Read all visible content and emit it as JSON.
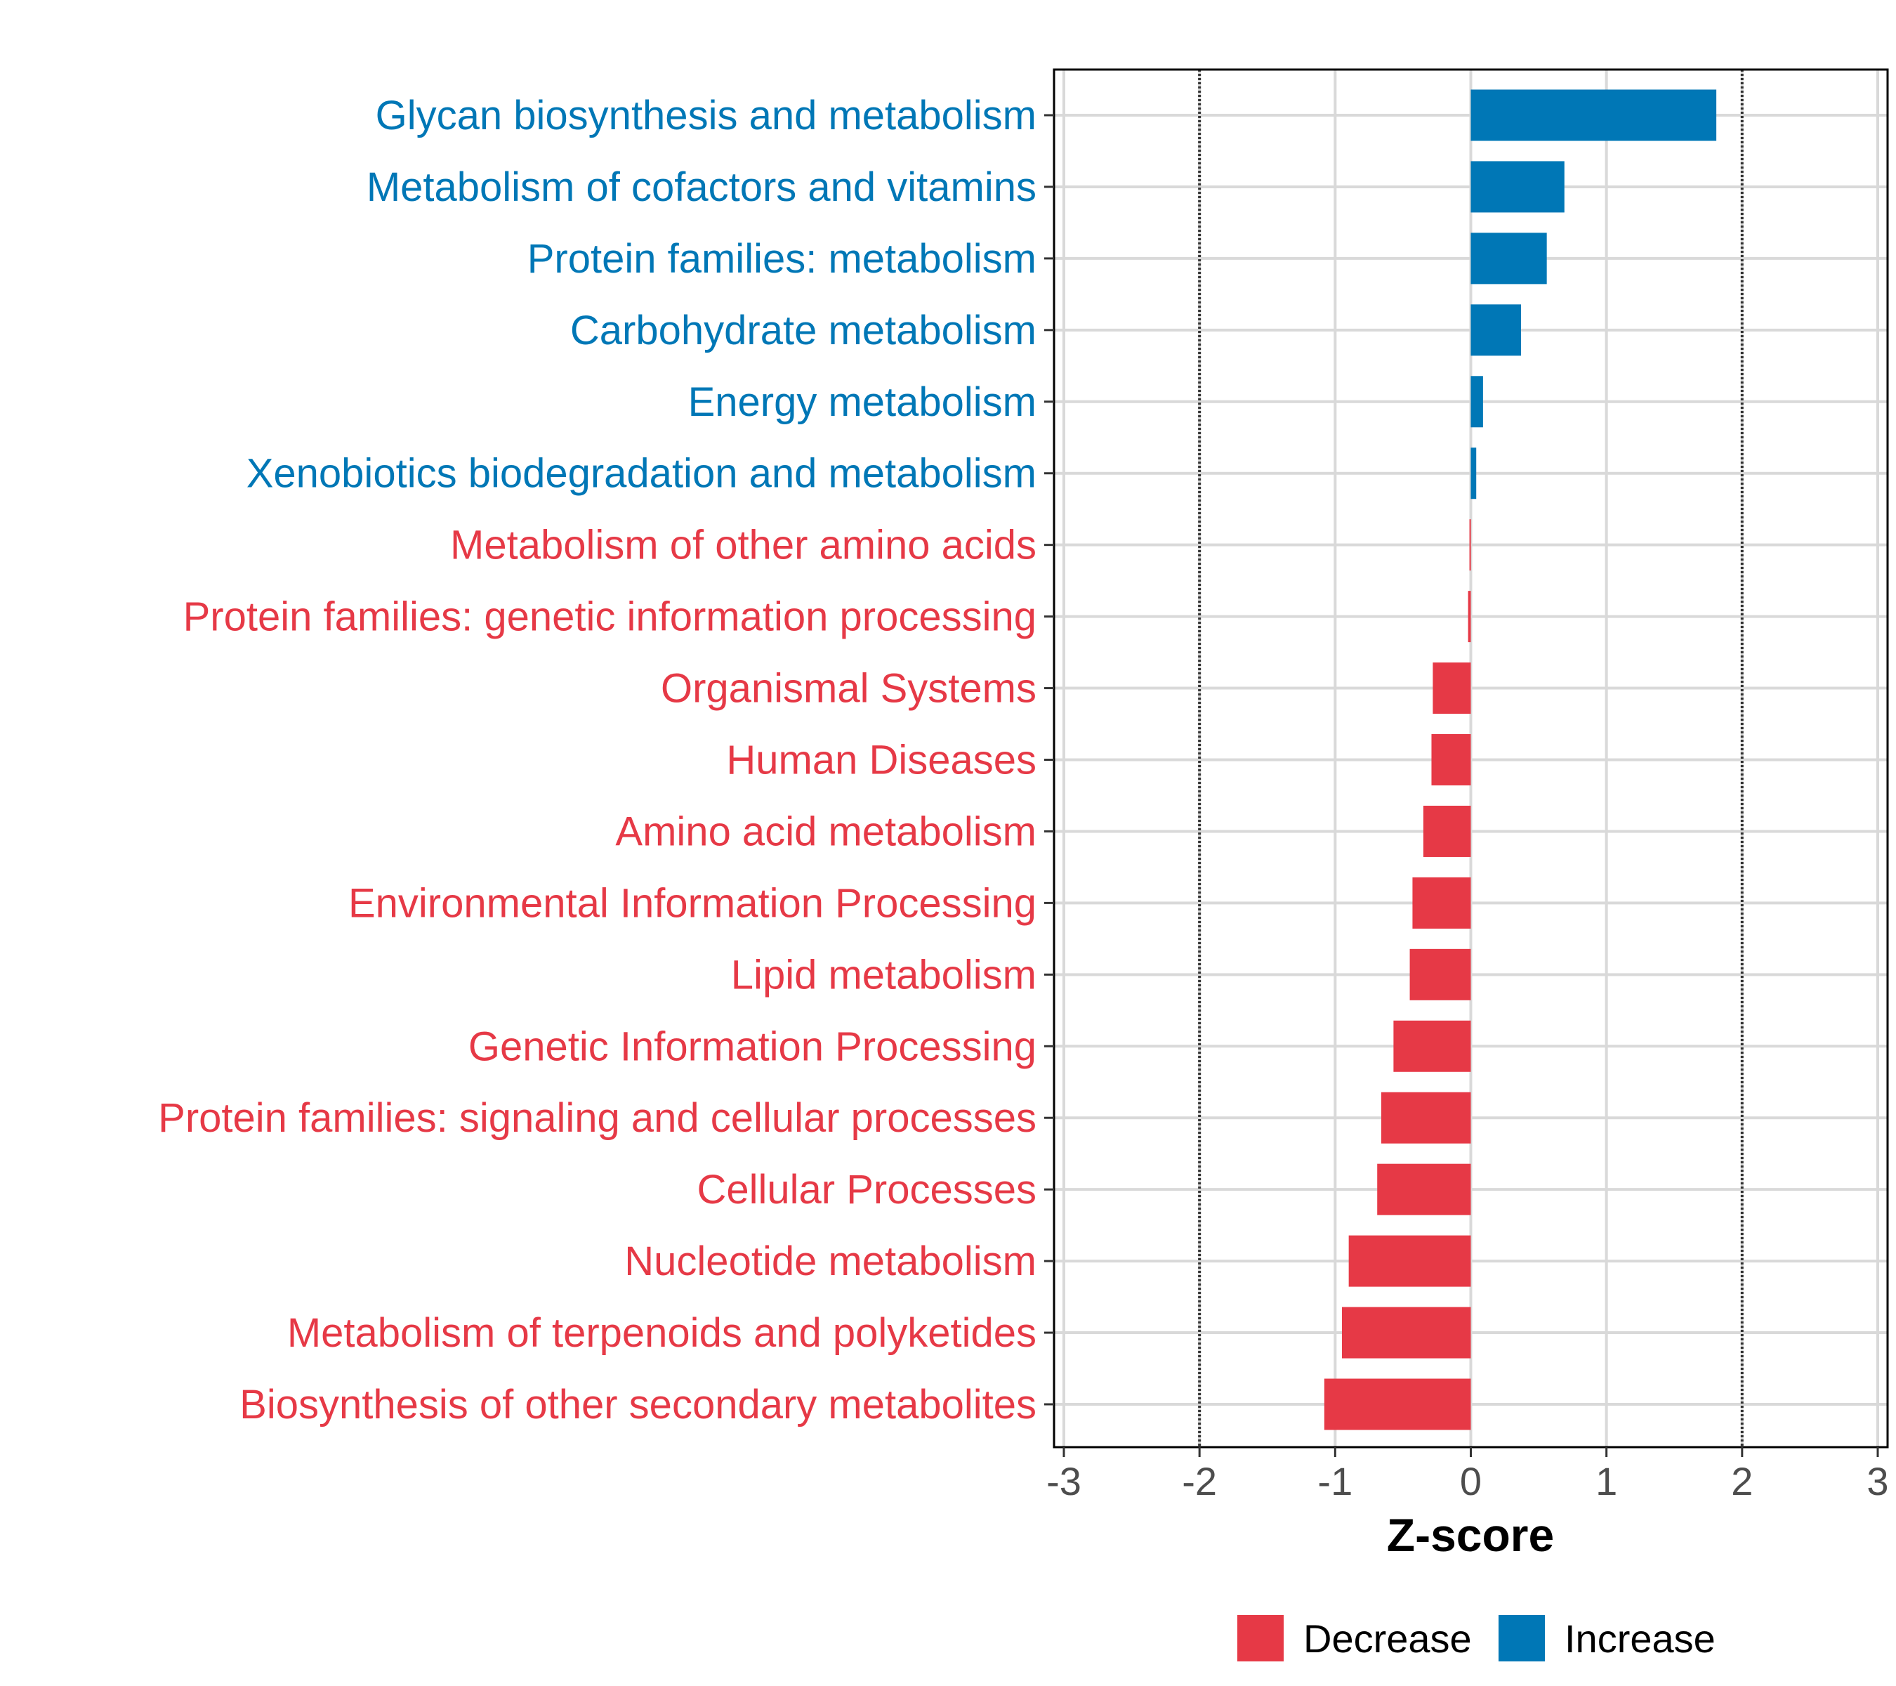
{
  "chart_data": {
    "type": "bar",
    "orientation": "horizontal",
    "title": "",
    "xlabel": "Z-score",
    "ylabel": "",
    "xlim": [
      -3,
      3
    ],
    "xticks": [
      -3,
      -2,
      -1,
      0,
      1,
      2,
      3
    ],
    "reference_lines": [
      -2,
      2
    ],
    "grid": true,
    "legend": {
      "position": "bottom",
      "entries": [
        {
          "label": "Decrease",
          "color": "#E63946"
        },
        {
          "label": "Increase",
          "color": "#0077B6"
        }
      ]
    },
    "categories": [
      "Glycan biosynthesis and metabolism",
      "Metabolism of cofactors and vitamins",
      "Protein families: metabolism",
      "Carbohydrate metabolism",
      "Energy metabolism",
      "Xenobiotics biodegradation and metabolism",
      "Metabolism of other amino acids",
      "Protein families: genetic information processing",
      "Organismal Systems",
      "Human Diseases",
      "Amino acid metabolism",
      "Environmental Information Processing",
      "Lipid metabolism",
      "Genetic Information Processing",
      "Protein families: signaling and cellular processes",
      "Cellular Processes",
      "Nucleotide metabolism",
      "Metabolism of terpenoids and polyketides",
      "Biosynthesis of other secondary metabolites"
    ],
    "values": [
      1.81,
      0.69,
      0.56,
      0.37,
      0.09,
      0.04,
      -0.01,
      -0.02,
      -0.28,
      -0.29,
      -0.35,
      -0.43,
      -0.45,
      -0.57,
      -0.66,
      -0.69,
      -0.9,
      -0.95,
      -1.08
    ]
  }
}
